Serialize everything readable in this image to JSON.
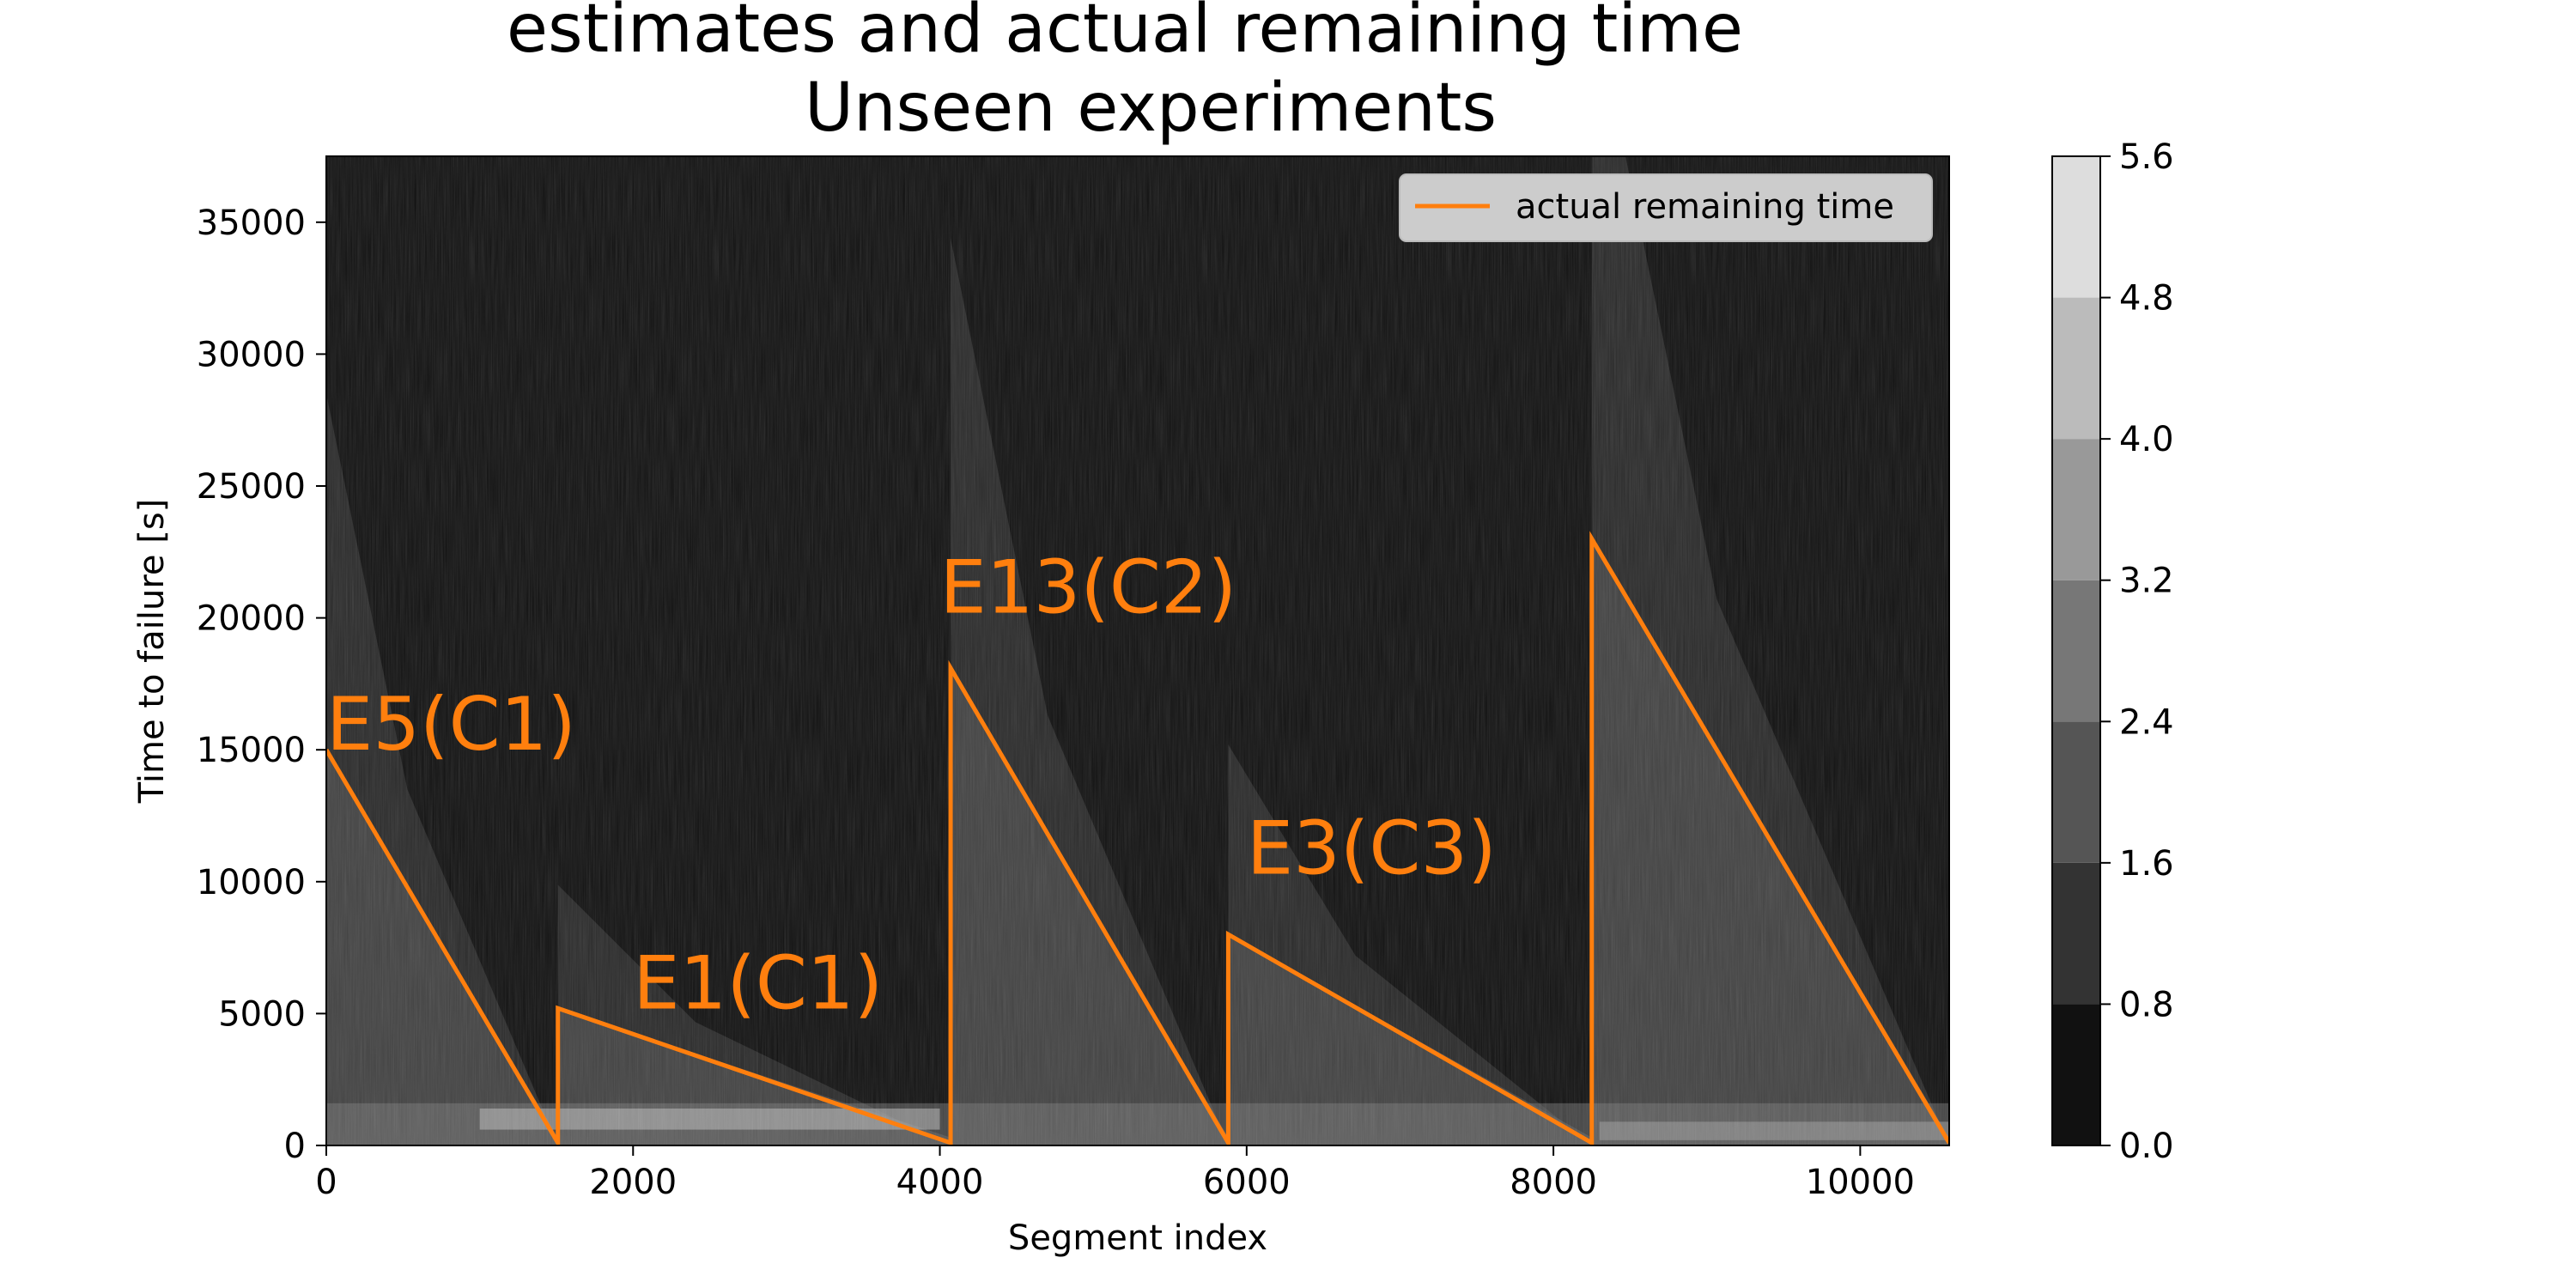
{
  "chart_data": {
    "type": "heatmap",
    "title_line1": "estimates and actual remaining time",
    "title_line2": "Unseen experiments",
    "xlabel": "Segment index",
    "ylabel": "Time to failure [s]",
    "xlim": [
      0,
      10580
    ],
    "ylim": [
      0,
      37500
    ],
    "xticks": [
      0,
      2000,
      4000,
      6000,
      8000,
      10000
    ],
    "yticks": [
      0,
      5000,
      10000,
      15000,
      20000,
      25000,
      30000,
      35000
    ],
    "xtick_labels": [
      "0",
      "2000",
      "4000",
      "6000",
      "8000",
      "10000"
    ],
    "ytick_labels": [
      "0",
      "5000",
      "10000",
      "15000",
      "20000",
      "25000",
      "30000",
      "35000"
    ],
    "colorbar": {
      "ticks": [
        0.0,
        0.8,
        1.6,
        2.4,
        3.2,
        4.0,
        4.8,
        5.6
      ],
      "tick_labels": [
        "0.0",
        "0.8",
        "1.6",
        "2.4",
        "3.2",
        "4.0",
        "4.8",
        "5.6"
      ],
      "colors": [
        "#111111",
        "#333333",
        "#555555",
        "#777777",
        "#999999",
        "#bbbbbb",
        "#dddddd"
      ]
    },
    "legend": {
      "label": "actual remaining time",
      "position": "upper right"
    },
    "series": [
      {
        "name": "actual remaining time",
        "color": "#ff7f0e",
        "x": [
          0,
          1510,
          1510,
          4070,
          4070,
          5880,
          5880,
          8250,
          8250,
          10580
        ],
        "y": [
          15000,
          100,
          5200,
          100,
          18100,
          100,
          8000,
          100,
          23000,
          100
        ]
      }
    ],
    "annotations": [
      {
        "text": "E5(C1)",
        "x": 0,
        "y": 15000
      },
      {
        "text": "E1(C1)",
        "x": 2000,
        "y": 5200
      },
      {
        "text": "E13(C2)",
        "x": 4000,
        "y": 20200
      },
      {
        "text": "E3(C3)",
        "x": 6000,
        "y": 10300
      }
    ]
  }
}
